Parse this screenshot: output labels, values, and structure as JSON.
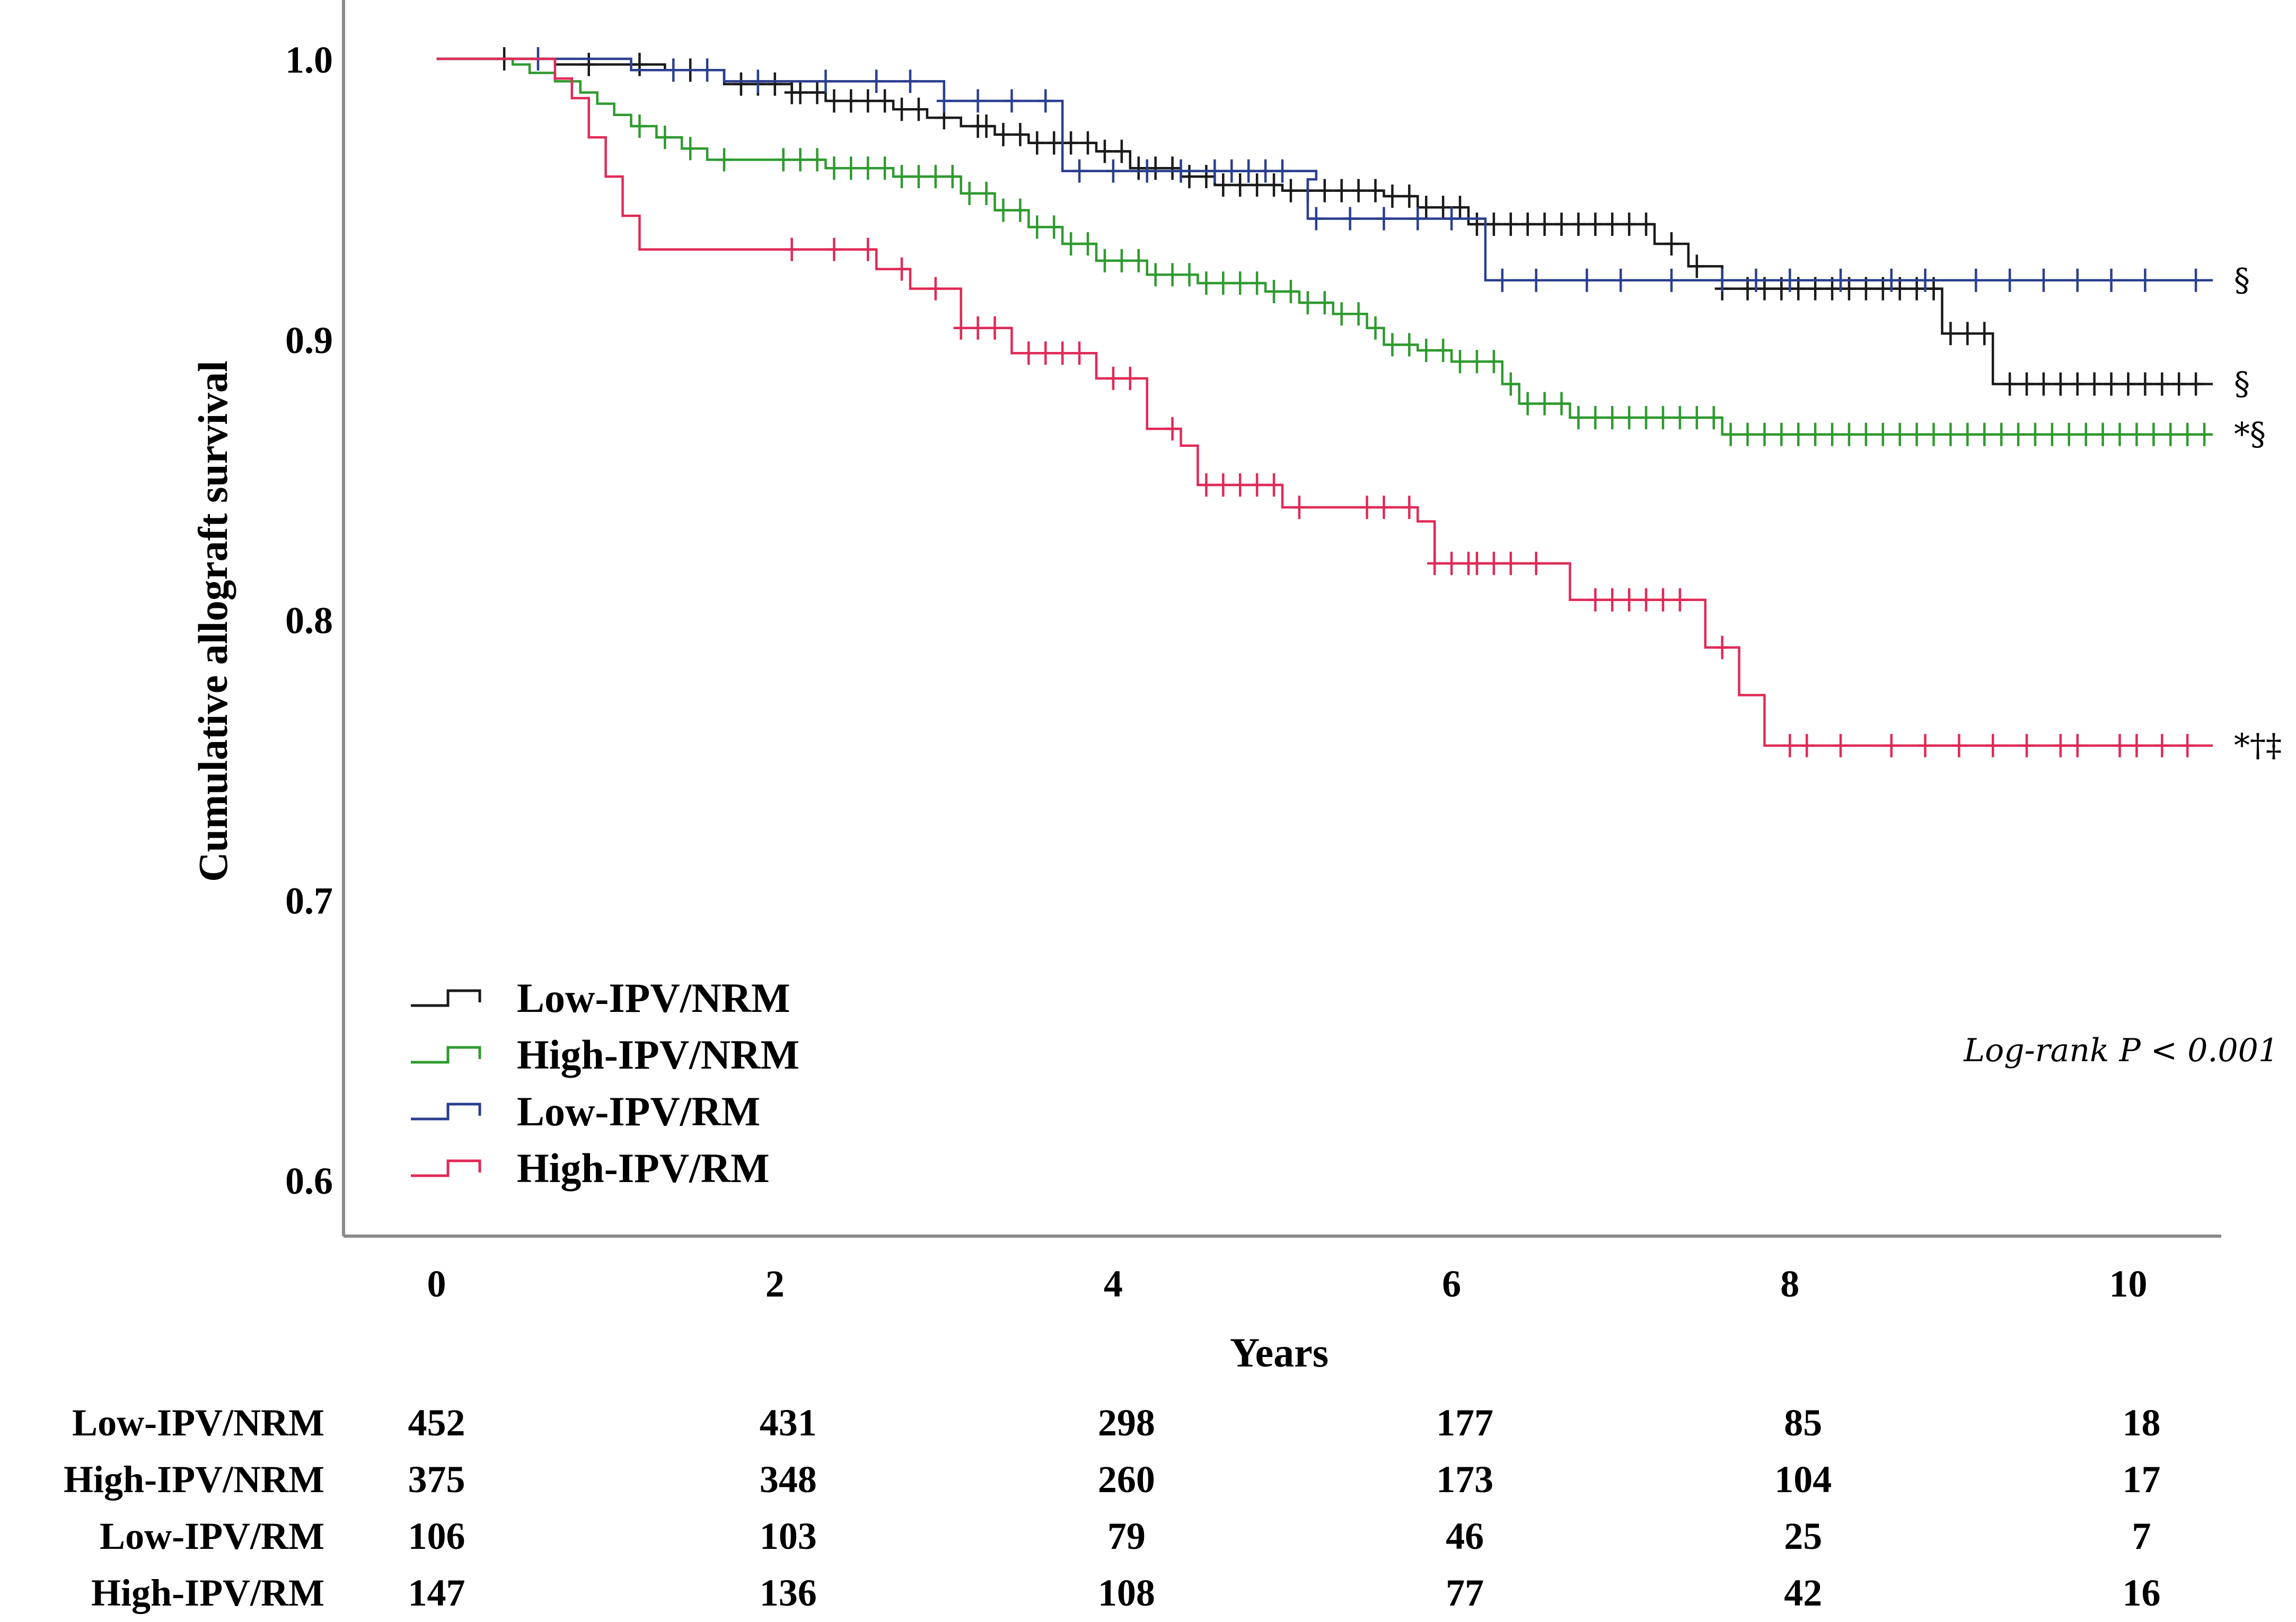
{
  "chart_data": {
    "type": "line",
    "subtype": "kaplan-meier",
    "title": "",
    "xlabel": "Years",
    "ylabel": "Cumulative allograft survival",
    "xlim": [
      -0.55,
      10.55
    ],
    "ylim": [
      0.58,
      1.021
    ],
    "xticks": [
      0,
      2,
      4,
      6,
      8,
      10
    ],
    "yticks": [
      1.0,
      0.9,
      0.8,
      0.7,
      0.6
    ],
    "xtick_labels": [
      "0",
      "2",
      "4",
      "6",
      "8",
      "10"
    ],
    "ytick_labels": [
      "1.0",
      "0.9",
      "0.8",
      "0.7",
      "0.6"
    ],
    "annotation": "Log-rank P < 0.001",
    "legend_position": "bottom-left",
    "series": [
      {
        "name": "Low-IPV/NRM",
        "color": "#1a1a1a",
        "end_mark": "§",
        "steps": [
          [
            0,
            1.0
          ],
          [
            0.7,
            0.998
          ],
          [
            1.35,
            0.996
          ],
          [
            1.7,
            0.991
          ],
          [
            2.1,
            0.988
          ],
          [
            2.3,
            0.985
          ],
          [
            2.7,
            0.982
          ],
          [
            2.9,
            0.979
          ],
          [
            3.1,
            0.976
          ],
          [
            3.3,
            0.973
          ],
          [
            3.5,
            0.97
          ],
          [
            3.9,
            0.967
          ],
          [
            4.1,
            0.961
          ],
          [
            4.4,
            0.958
          ],
          [
            4.6,
            0.955
          ],
          [
            5.0,
            0.953
          ],
          [
            5.6,
            0.951
          ],
          [
            5.8,
            0.947
          ],
          [
            6.1,
            0.941
          ],
          [
            7.2,
            0.934
          ],
          [
            7.4,
            0.926
          ],
          [
            7.6,
            0.918
          ],
          [
            8.9,
            0.902
          ],
          [
            9.2,
            0.884
          ],
          [
            10.5,
            0.884
          ]
        ],
        "censor_x": [
          0.4,
          0.9,
          1.2,
          1.5,
          1.8,
          1.9,
          2.0,
          2.1,
          2.15,
          2.25,
          2.35,
          2.45,
          2.55,
          2.65,
          2.75,
          2.85,
          3.0,
          3.2,
          3.25,
          3.35,
          3.45,
          3.55,
          3.65,
          3.75,
          3.85,
          3.95,
          4.05,
          4.15,
          4.25,
          4.35,
          4.45,
          4.55,
          4.65,
          4.75,
          4.85,
          4.95,
          5.05,
          5.15,
          5.25,
          5.35,
          5.45,
          5.55,
          5.65,
          5.75,
          5.85,
          5.95,
          6.05,
          6.15,
          6.25,
          6.35,
          6.45,
          6.55,
          6.65,
          6.75,
          6.85,
          6.95,
          7.05,
          7.15,
          7.3,
          7.45,
          7.6,
          7.75,
          7.85,
          7.95,
          8.05,
          8.15,
          8.25,
          8.35,
          8.45,
          8.55,
          8.65,
          8.75,
          8.85,
          8.95,
          9.05,
          9.15,
          9.3,
          9.4,
          9.5,
          9.6,
          9.7,
          9.8,
          9.9,
          10.0,
          10.1,
          10.2,
          10.3,
          10.4
        ]
      },
      {
        "name": "High-IPV/NRM",
        "color": "#2f9a2f",
        "end_mark": "*§",
        "steps": [
          [
            0,
            1.0
          ],
          [
            0.45,
            0.998
          ],
          [
            0.55,
            0.995
          ],
          [
            0.7,
            0.992
          ],
          [
            0.85,
            0.988
          ],
          [
            0.95,
            0.984
          ],
          [
            1.05,
            0.98
          ],
          [
            1.15,
            0.976
          ],
          [
            1.3,
            0.972
          ],
          [
            1.45,
            0.968
          ],
          [
            1.6,
            0.964
          ],
          [
            2.3,
            0.961
          ],
          [
            2.7,
            0.958
          ],
          [
            3.1,
            0.952
          ],
          [
            3.3,
            0.946
          ],
          [
            3.5,
            0.94
          ],
          [
            3.7,
            0.934
          ],
          [
            3.9,
            0.928
          ],
          [
            4.2,
            0.923
          ],
          [
            4.5,
            0.92
          ],
          [
            4.9,
            0.917
          ],
          [
            5.1,
            0.913
          ],
          [
            5.3,
            0.909
          ],
          [
            5.5,
            0.904
          ],
          [
            5.6,
            0.898
          ],
          [
            5.8,
            0.896
          ],
          [
            6.0,
            0.892
          ],
          [
            6.3,
            0.884
          ],
          [
            6.4,
            0.877
          ],
          [
            6.7,
            0.872
          ],
          [
            7.6,
            0.866
          ],
          [
            10.5,
            0.866
          ]
        ],
        "censor_x": [
          1.2,
          1.35,
          1.5,
          1.7,
          2.05,
          2.15,
          2.25,
          2.35,
          2.45,
          2.55,
          2.65,
          2.75,
          2.85,
          2.95,
          3.05,
          3.15,
          3.25,
          3.35,
          3.45,
          3.55,
          3.65,
          3.75,
          3.85,
          3.95,
          4.05,
          4.15,
          4.25,
          4.35,
          4.45,
          4.55,
          4.65,
          4.75,
          4.85,
          4.95,
          5.05,
          5.15,
          5.25,
          5.35,
          5.45,
          5.55,
          5.65,
          5.75,
          5.85,
          5.95,
          6.05,
          6.15,
          6.25,
          6.35,
          6.45,
          6.55,
          6.65,
          6.75,
          6.85,
          6.95,
          7.05,
          7.15,
          7.25,
          7.35,
          7.45,
          7.55,
          7.65,
          7.75,
          7.85,
          7.95,
          8.05,
          8.15,
          8.25,
          8.35,
          8.45,
          8.55,
          8.65,
          8.75,
          8.85,
          8.95,
          9.05,
          9.15,
          9.25,
          9.35,
          9.45,
          9.55,
          9.65,
          9.75,
          9.85,
          9.95,
          10.05,
          10.15,
          10.25,
          10.35,
          10.45
        ]
      },
      {
        "name": "Low-IPV/RM",
        "color": "#2b3f8f",
        "end_mark": "§",
        "steps": [
          [
            0,
            1.0
          ],
          [
            1.15,
            0.996
          ],
          [
            1.7,
            0.992
          ],
          [
            3.0,
            0.985
          ],
          [
            3.7,
            0.96
          ],
          [
            5.2,
            0.957
          ],
          [
            5.15,
            0.943
          ],
          [
            6.2,
            0.921
          ],
          [
            10.5,
            0.921
          ]
        ],
        "censor_x": [
          0.6,
          1.4,
          1.6,
          1.9,
          2.3,
          2.6,
          2.8,
          3.0,
          3.2,
          3.4,
          3.6,
          3.8,
          4.0,
          4.2,
          4.4,
          4.6,
          4.7,
          4.8,
          4.9,
          5.0,
          5.2,
          5.4,
          5.6,
          5.8,
          6.0,
          6.3,
          6.5,
          6.8,
          7.0,
          7.3,
          7.6,
          7.8,
          8.0,
          8.3,
          8.6,
          8.8,
          9.1,
          9.3,
          9.5,
          9.7,
          9.9,
          10.1,
          10.4
        ]
      },
      {
        "name": "High-IPV/RM",
        "color": "#e02a56",
        "end_mark": "*†‡",
        "steps": [
          [
            0,
            1.0
          ],
          [
            0.7,
            0.993
          ],
          [
            0.8,
            0.986
          ],
          [
            0.9,
            0.972
          ],
          [
            1.0,
            0.958
          ],
          [
            1.1,
            0.944
          ],
          [
            1.2,
            0.932
          ],
          [
            2.6,
            0.925
          ],
          [
            2.8,
            0.918
          ],
          [
            3.1,
            0.904
          ],
          [
            3.4,
            0.895
          ],
          [
            3.9,
            0.886
          ],
          [
            4.2,
            0.868
          ],
          [
            4.4,
            0.862
          ],
          [
            4.5,
            0.848
          ],
          [
            5.0,
            0.84
          ],
          [
            5.8,
            0.835
          ],
          [
            5.9,
            0.82
          ],
          [
            6.7,
            0.807
          ],
          [
            7.5,
            0.79
          ],
          [
            7.7,
            0.773
          ],
          [
            7.85,
            0.755
          ],
          [
            10.5,
            0.755
          ]
        ],
        "censor_x": [
          2.1,
          2.35,
          2.55,
          2.75,
          2.95,
          3.1,
          3.2,
          3.3,
          3.5,
          3.6,
          3.7,
          3.8,
          4.0,
          4.1,
          4.35,
          4.55,
          4.65,
          4.75,
          4.85,
          4.95,
          5.1,
          5.5,
          5.6,
          5.75,
          5.9,
          6.0,
          6.1,
          6.15,
          6.25,
          6.35,
          6.5,
          6.85,
          6.95,
          7.05,
          7.15,
          7.25,
          7.35,
          7.6,
          8.0,
          8.1,
          8.3,
          8.6,
          8.8,
          9.0,
          9.2,
          9.4,
          9.6,
          9.7,
          9.95,
          10.05,
          10.2,
          10.35
        ]
      }
    ],
    "risk_table": {
      "time_points": [
        0,
        2,
        4,
        6,
        8,
        10
      ],
      "rows": [
        {
          "label": "Low-IPV/NRM",
          "values": [
            "452",
            "431",
            "298",
            "177",
            "85",
            "18"
          ]
        },
        {
          "label": "High-IPV/NRM",
          "values": [
            "375",
            "348",
            "260",
            "173",
            "104",
            "17"
          ]
        },
        {
          "label": "Low-IPV/RM",
          "values": [
            "106",
            "103",
            "79",
            "46",
            "25",
            "7"
          ]
        },
        {
          "label": "High-IPV/RM",
          "values": [
            "147",
            "136",
            "108",
            "77",
            "42",
            "16"
          ]
        }
      ]
    }
  }
}
